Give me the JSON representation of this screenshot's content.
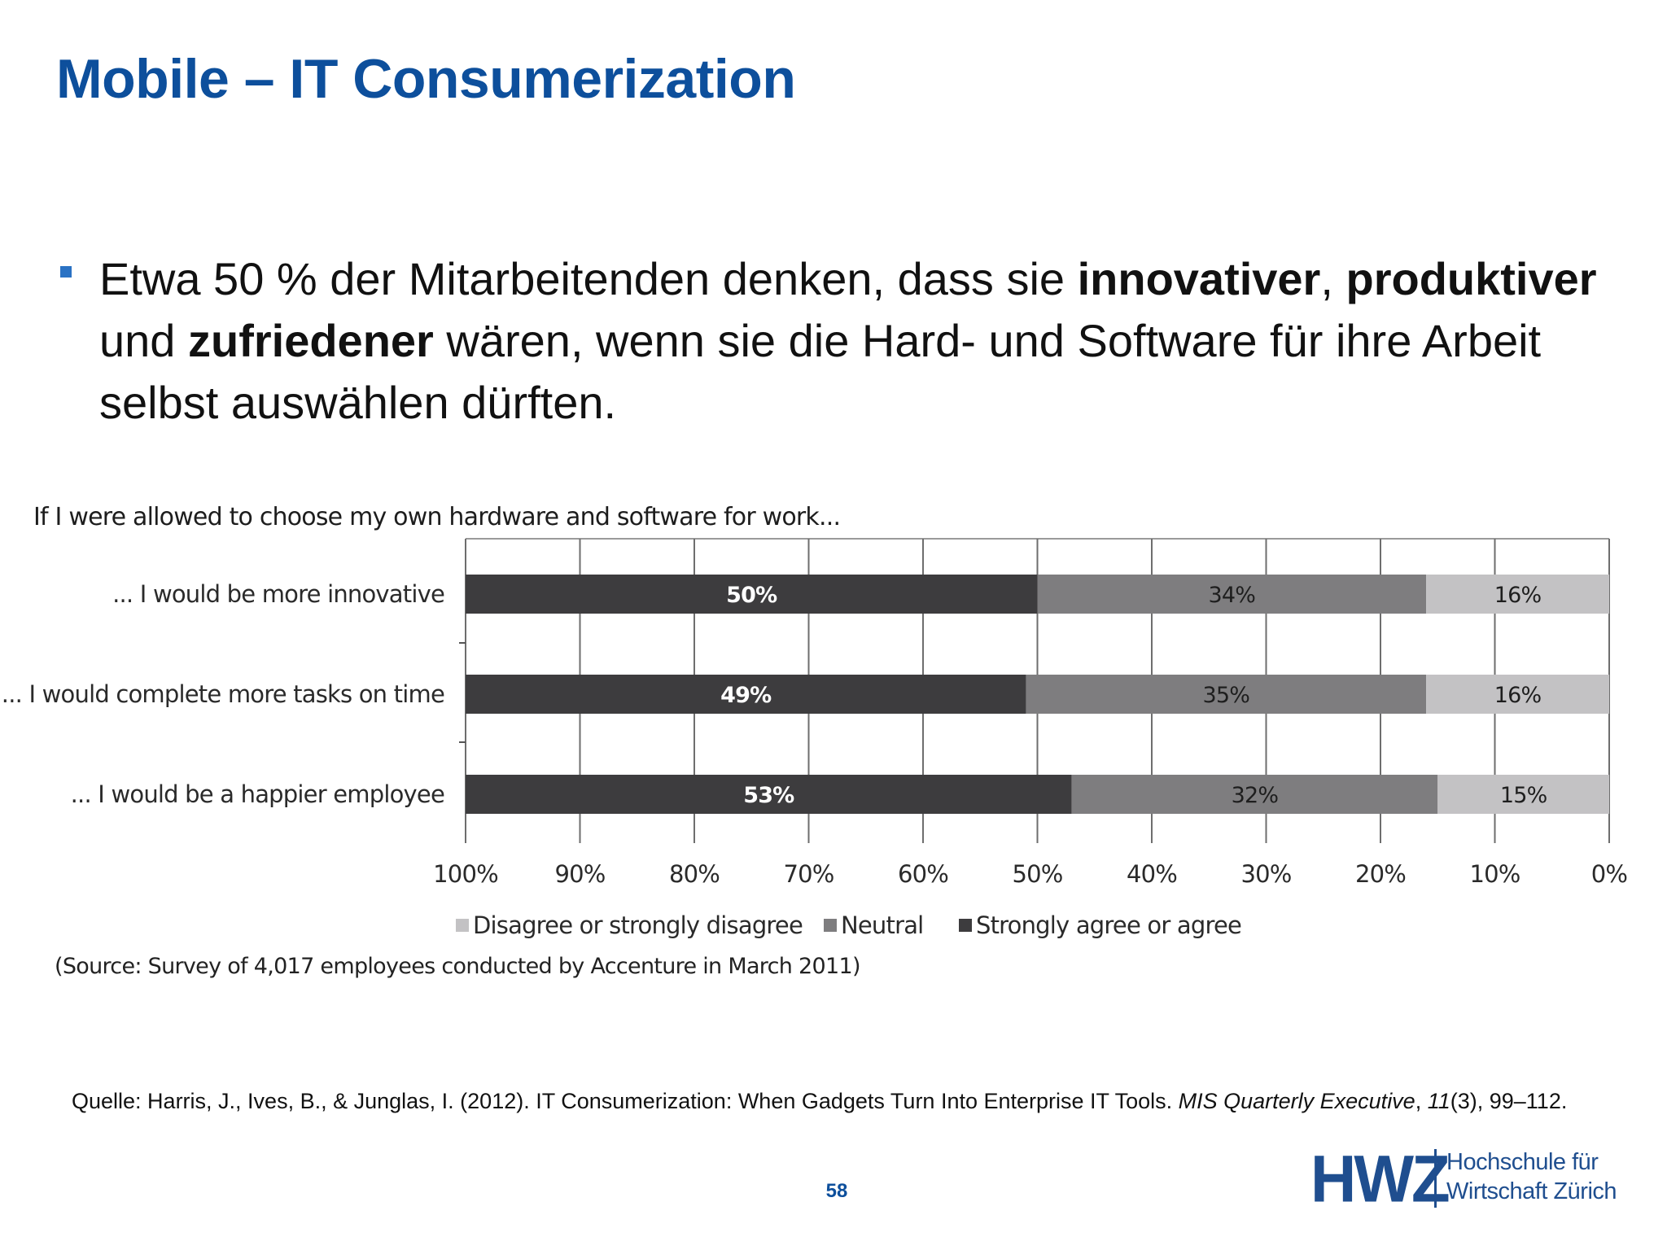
{
  "slide": {
    "title": "Mobile – IT Consumerization",
    "bullet": {
      "part1": "Etwa 50 % der Mitarbeitenden denken, dass sie ",
      "bold1": "innovativer",
      "part2": ", ",
      "bold2": "produktiver",
      "part3": " und ",
      "bold3": "zufriedener",
      "part4": " wären, wenn sie die Hard- und Software für ihre Arbeit selbst auswählen dürften."
    },
    "page_number": "58",
    "reference": {
      "part1": "Quelle: Harris, J., Ives, B., & Junglas, I. (2012). IT Consumerization: When Gadgets Turn Into Enterprise IT Tools. ",
      "journal": "MIS Quarterly Executive",
      "part2": ", ",
      "volume": "11",
      "part3": "(3), 99–112."
    },
    "logo": {
      "mark": "HWZ",
      "line1": "Hochschule für",
      "line2": "Wirtschaft Zürich"
    }
  },
  "chart_data": {
    "type": "bar",
    "orientation": "horizontal-stacked-100",
    "title": "If I were allowed to choose my own hardware and software for work...",
    "source": "(Source: Survey of 4,017 employees conducted by Accenture in March 2011)",
    "categories": [
      "... I would be more innovative",
      "... I would complete more tasks on time",
      "... I would be a happier employee"
    ],
    "series": [
      {
        "name": "Strongly agree or agree",
        "values": [
          50,
          49,
          53
        ],
        "labels": [
          "50%",
          "49%",
          "53%"
        ],
        "color": "#3d3c3e"
      },
      {
        "name": "Neutral",
        "values": [
          34,
          35,
          32
        ],
        "labels": [
          "34%",
          "35%",
          "32%"
        ],
        "color": "#7e7d7f"
      },
      {
        "name": "Disagree or strongly disagree",
        "values": [
          16,
          16,
          15
        ],
        "labels": [
          "16%",
          "16%",
          "15%"
        ],
        "color": "#c3c2c4"
      }
    ],
    "x_ticks": [
      "100%",
      "90%",
      "80%",
      "70%",
      "60%",
      "50%",
      "40%",
      "30%",
      "20%",
      "10%",
      "0%"
    ],
    "xlim": [
      100,
      0
    ],
    "legend_order": [
      "Disagree or strongly disagree",
      "Neutral",
      "Strongly agree or agree"
    ],
    "legend_position": "bottom",
    "grid": true
  }
}
